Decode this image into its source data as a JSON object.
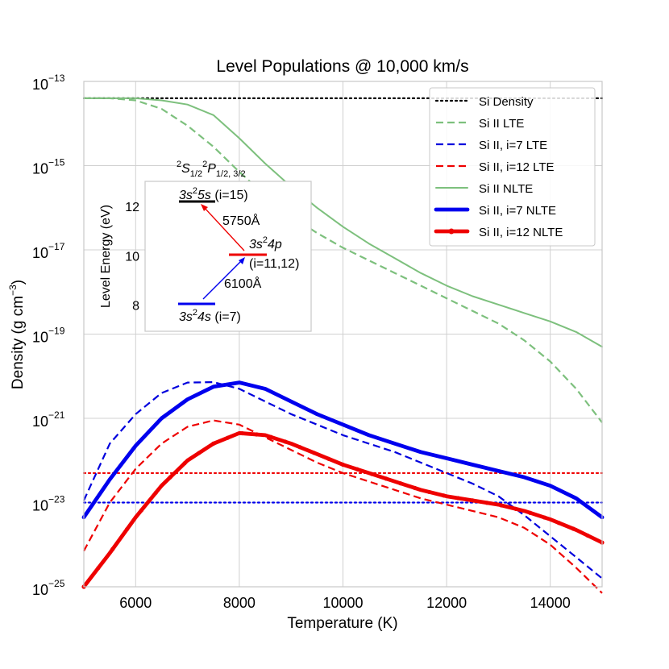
{
  "chart_data": {
    "type": "line",
    "title": "Level Populations @ 10,000 km/s",
    "xlabel": "Temperature (K)",
    "ylabel": "Density (g cm⁻³)",
    "ylabel_main": "Density (g cm",
    "ylabel_exp": "−3",
    "ylabel_close": ")",
    "xlim": [
      5000,
      15000
    ],
    "ylog_lim": [
      -25,
      -13
    ],
    "yscale": "log",
    "grid": true,
    "legend_position": "upper-right",
    "x_ticks": [
      6000,
      8000,
      10000,
      12000,
      14000
    ],
    "y_ticks": [
      {
        "base": "10",
        "exp": "−13",
        "value": -13
      },
      {
        "base": "10",
        "exp": "−15",
        "value": -15
      },
      {
        "base": "10",
        "exp": "−17",
        "value": -17
      },
      {
        "base": "10",
        "exp": "−19",
        "value": -19
      },
      {
        "base": "10",
        "exp": "−21",
        "value": -21
      },
      {
        "base": "10",
        "exp": "−23",
        "value": -23
      },
      {
        "base": "10",
        "exp": "−25",
        "value": -25
      }
    ],
    "x": [
      5000,
      5500,
      6000,
      6500,
      7000,
      7500,
      8000,
      8500,
      9000,
      9500,
      10000,
      10500,
      11000,
      11500,
      12000,
      12500,
      13000,
      13500,
      14000,
      14500,
      15000
    ],
    "series": [
      {
        "name": "Si Density",
        "color": "#000000",
        "style": "dotted",
        "log_values": [
          -13.4,
          -13.4,
          -13.4,
          -13.4,
          -13.4,
          -13.4,
          -13.4,
          -13.4,
          -13.4,
          -13.4,
          -13.4,
          -13.4,
          -13.4,
          -13.4,
          -13.4,
          -13.4,
          -13.4,
          -13.4,
          -13.4,
          -13.4,
          -13.4
        ]
      },
      {
        "name": "Si II LTE",
        "color": "#7dc07d",
        "style": "dashed",
        "log_values": [
          -13.4,
          -13.4,
          -13.45,
          -13.65,
          -14.05,
          -14.55,
          -15.15,
          -15.7,
          -16.2,
          -16.6,
          -16.95,
          -17.25,
          -17.55,
          -17.85,
          -18.15,
          -18.45,
          -18.75,
          -19.15,
          -19.65,
          -20.3,
          -21.1
        ]
      },
      {
        "name": "Si II, i=7 LTE",
        "color": "#0000dd",
        "style": "dashed",
        "log_values": [
          -22.95,
          -21.6,
          -20.9,
          -20.4,
          -20.15,
          -20.14,
          -20.3,
          -20.6,
          -20.9,
          -21.15,
          -21.4,
          -21.6,
          -21.8,
          -22.05,
          -22.3,
          -22.55,
          -22.85,
          -23.3,
          -23.8,
          -24.3,
          -24.8
        ]
      },
      {
        "name": "Si II, i=12 LTE",
        "color": "#ee0000",
        "style": "dashed",
        "log_values": [
          -24.15,
          -23.0,
          -22.2,
          -21.6,
          -21.2,
          -21.05,
          -21.15,
          -21.45,
          -21.75,
          -22.05,
          -22.3,
          -22.5,
          -22.7,
          -22.9,
          -23.05,
          -23.2,
          -23.35,
          -23.6,
          -24.0,
          -24.55,
          -25.15
        ]
      },
      {
        "name": "Si II NLTE",
        "color": "#7dc07d",
        "style": "solid",
        "log_values": [
          -13.4,
          -13.4,
          -13.4,
          -13.45,
          -13.55,
          -13.8,
          -14.35,
          -14.95,
          -15.5,
          -16.0,
          -16.45,
          -16.85,
          -17.2,
          -17.55,
          -17.85,
          -18.1,
          -18.3,
          -18.5,
          -18.7,
          -18.95,
          -19.3
        ]
      },
      {
        "name": "Si II, i=7 NLTE",
        "color": "#0000ee",
        "style": "thick",
        "log_values": [
          -23.35,
          -22.45,
          -21.65,
          -21.0,
          -20.55,
          -20.25,
          -20.15,
          -20.3,
          -20.6,
          -20.9,
          -21.15,
          -21.4,
          -21.6,
          -21.8,
          -21.95,
          -22.1,
          -22.25,
          -22.4,
          -22.6,
          -22.9,
          -23.35
        ]
      },
      {
        "name": "Si II, i=12 NLTE",
        "color": "#ee0000",
        "style": "thick-markers",
        "log_values": [
          -25.0,
          -24.2,
          -23.35,
          -22.6,
          -22.0,
          -21.6,
          -21.35,
          -21.4,
          -21.6,
          -21.85,
          -22.1,
          -22.3,
          -22.5,
          -22.7,
          -22.85,
          -22.95,
          -23.05,
          -23.2,
          -23.4,
          -23.65,
          -23.95
        ]
      }
    ],
    "reference_lines": [
      {
        "name": "red-dotted-reference",
        "color": "#ee0000",
        "log_value": -22.3
      },
      {
        "name": "blue-dotted-reference",
        "color": "#0000ee",
        "log_value": -23.0
      }
    ],
    "inset": {
      "title_parts": [
        "2",
        "S",
        "1/2",
        "2",
        "P",
        "1/2, 3/2"
      ],
      "ylabel": "Level Energy (eV)",
      "ylim": [
        7.5,
        13.5
      ],
      "y_ticks": [
        8,
        10,
        12
      ],
      "levels": [
        {
          "label_pre": "3s",
          "label_sup": "2",
          "label_orb": "5s",
          "label_post": " (i=15)",
          "energy": 12.2,
          "color": "#000000"
        },
        {
          "label_pre": "3s",
          "label_sup": "2",
          "label_orb": "4p",
          "label_post": "",
          "index_label": "(i=11,12)",
          "energy": 10.1,
          "color": "#ee0000"
        },
        {
          "label_pre": "3s",
          "label_sup": "2",
          "label_orb": "4s",
          "label_post": " (i=7)",
          "energy": 8.05,
          "color": "#0000ee"
        }
      ],
      "transitions": [
        {
          "label": "5750Å",
          "color": "#ee0000"
        },
        {
          "label": "6100Å",
          "color": "#0000ee"
        }
      ]
    }
  }
}
